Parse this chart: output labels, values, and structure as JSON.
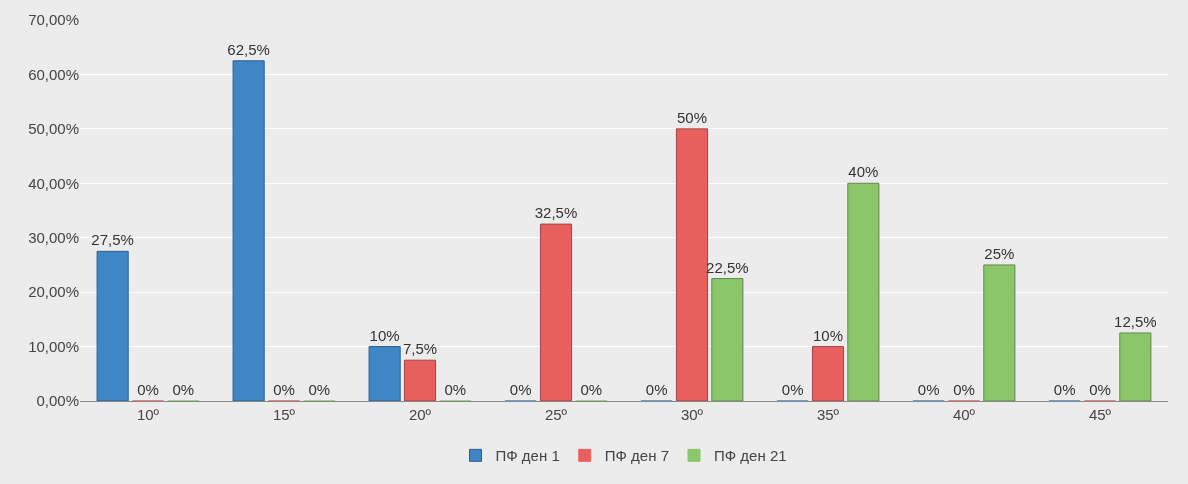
{
  "chart_data": {
    "type": "bar",
    "categories": [
      "10º",
      "15º",
      "20º",
      "25º",
      "30º",
      "35º",
      "40º",
      "45º"
    ],
    "series": [
      {
        "name": "ПФ ден 1",
        "color": "#3f86c6",
        "values": [
          27.5,
          62.5,
          10,
          0,
          0,
          0,
          0,
          0
        ],
        "value_labels": [
          "27,5%",
          "62,5%",
          "10%",
          "0%",
          "0%",
          "0%",
          "0%",
          "0%"
        ]
      },
      {
        "name": "ПФ ден 7",
        "color": "#e8605e",
        "values": [
          0,
          0,
          7.5,
          32.5,
          50,
          10,
          0,
          0
        ],
        "value_labels": [
          "0%",
          "0%",
          "7,5%",
          "32,5%",
          "50%",
          "10%",
          "0%",
          "0%"
        ]
      },
      {
        "name": "ПФ ден 21",
        "color": "#8cc66b",
        "values": [
          0,
          0,
          0,
          0,
          22.5,
          40,
          25,
          12.5
        ],
        "value_labels": [
          "0%",
          "0%",
          "0%",
          "0%",
          "22,5%",
          "40%",
          "25%",
          "12,5%"
        ]
      }
    ],
    "ylim": [
      0,
      70
    ],
    "yticks": [
      {
        "value": 0,
        "label": "0,00%"
      },
      {
        "value": 10,
        "label": "10,00%"
      },
      {
        "value": 20,
        "label": "20,00%"
      },
      {
        "value": 30,
        "label": "30,00%"
      },
      {
        "value": 40,
        "label": "40,00%"
      },
      {
        "value": 50,
        "label": "50,00%"
      },
      {
        "value": 60,
        "label": "60,00%"
      },
      {
        "value": 70,
        "label": "70,00%"
      }
    ],
    "grid": "y",
    "legend": "bottom"
  }
}
